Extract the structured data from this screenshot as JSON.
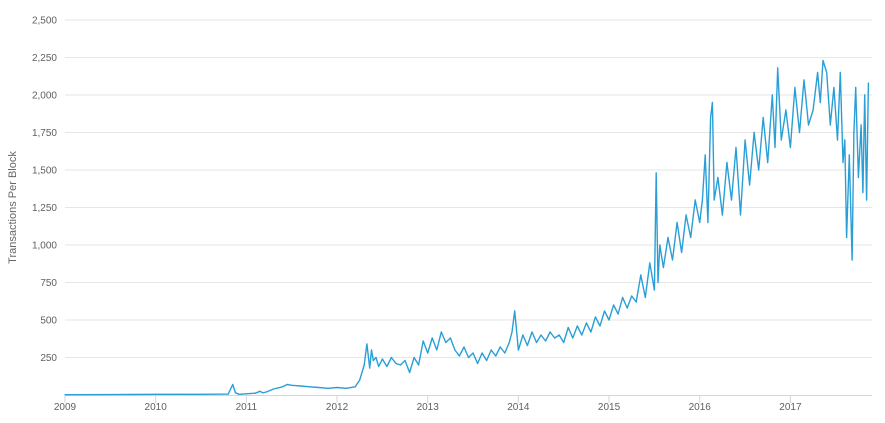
{
  "chart_data": {
    "type": "line",
    "title": "",
    "xlabel": "",
    "ylabel": "Transactions Per Block",
    "xlim": [
      2009.0,
      2017.9
    ],
    "ylim": [
      0,
      2500
    ],
    "x_ticks": [
      {
        "value": 2009,
        "label": "2009"
      },
      {
        "value": 2010,
        "label": "2010"
      },
      {
        "value": 2011,
        "label": "2011"
      },
      {
        "value": 2012,
        "label": "2012"
      },
      {
        "value": 2013,
        "label": "2013"
      },
      {
        "value": 2014,
        "label": "2014"
      },
      {
        "value": 2015,
        "label": "2015"
      },
      {
        "value": 2016,
        "label": "2016"
      },
      {
        "value": 2017,
        "label": "2017"
      }
    ],
    "y_ticks": [
      {
        "value": 250,
        "label": "250"
      },
      {
        "value": 500,
        "label": "500"
      },
      {
        "value": 750,
        "label": "750"
      },
      {
        "value": 1000,
        "label": "1,000"
      },
      {
        "value": 1250,
        "label": "1,250"
      },
      {
        "value": 1500,
        "label": "1,500"
      },
      {
        "value": 1750,
        "label": "1,750"
      },
      {
        "value": 2000,
        "label": "2,000"
      },
      {
        "value": 2250,
        "label": "2,250"
      },
      {
        "value": 2500,
        "label": "2,500"
      }
    ],
    "grid": true,
    "legend": "none",
    "line_color": "#2a9fd6",
    "series": [
      {
        "x": [
          2009.0,
          2009.5,
          2010.0,
          2010.3,
          2010.5,
          2010.8,
          2010.85,
          2010.88,
          2010.92,
          2011.0,
          2011.1,
          2011.15,
          2011.18,
          2011.22,
          2011.3,
          2011.4,
          2011.45,
          2011.5,
          2011.6,
          2011.7,
          2011.8,
          2011.9,
          2012.0,
          2012.1,
          2012.2,
          2012.25,
          2012.3,
          2012.33,
          2012.36,
          2012.38,
          2012.4,
          2012.43,
          2012.46,
          2012.5,
          2012.55,
          2012.6,
          2012.65,
          2012.7,
          2012.75,
          2012.8,
          2012.85,
          2012.9,
          2012.95,
          2013.0,
          2013.05,
          2013.1,
          2013.15,
          2013.2,
          2013.25,
          2013.3,
          2013.35,
          2013.4,
          2013.45,
          2013.5,
          2013.55,
          2013.6,
          2013.65,
          2013.7,
          2013.75,
          2013.8,
          2013.85,
          2013.9,
          2013.93,
          2013.96,
          2014.0,
          2014.05,
          2014.1,
          2014.15,
          2014.2,
          2014.25,
          2014.3,
          2014.35,
          2014.4,
          2014.45,
          2014.5,
          2014.55,
          2014.6,
          2014.65,
          2014.7,
          2014.75,
          2014.8,
          2014.85,
          2014.9,
          2014.95,
          2015.0,
          2015.05,
          2015.1,
          2015.15,
          2015.2,
          2015.25,
          2015.3,
          2015.35,
          2015.4,
          2015.45,
          2015.5,
          2015.52,
          2015.54,
          2015.56,
          2015.6,
          2015.65,
          2015.7,
          2015.75,
          2015.8,
          2015.85,
          2015.9,
          2015.95,
          2016.0,
          2016.03,
          2016.06,
          2016.09,
          2016.12,
          2016.14,
          2016.16,
          2016.2,
          2016.25,
          2016.3,
          2016.35,
          2016.4,
          2016.45,
          2016.5,
          2016.55,
          2016.6,
          2016.65,
          2016.7,
          2016.75,
          2016.8,
          2016.83,
          2016.86,
          2016.9,
          2016.95,
          2017.0,
          2017.05,
          2017.1,
          2017.15,
          2017.2,
          2017.25,
          2017.3,
          2017.33,
          2017.36,
          2017.4,
          2017.44,
          2017.48,
          2017.52,
          2017.55,
          2017.58,
          2017.6,
          2017.62,
          2017.65,
          2017.68,
          2017.7,
          2017.72,
          2017.75,
          2017.78,
          2017.8,
          2017.82,
          2017.84,
          2017.86
        ],
        "values": [
          2,
          3,
          5,
          5,
          5,
          6,
          70,
          15,
          5,
          8,
          12,
          25,
          15,
          20,
          40,
          55,
          70,
          65,
          60,
          55,
          50,
          45,
          50,
          45,
          55,
          100,
          200,
          340,
          180,
          300,
          230,
          250,
          190,
          240,
          190,
          250,
          210,
          200,
          230,
          150,
          250,
          200,
          360,
          280,
          380,
          300,
          420,
          350,
          380,
          300,
          260,
          320,
          250,
          280,
          210,
          280,
          230,
          300,
          260,
          320,
          280,
          350,
          420,
          560,
          300,
          400,
          330,
          420,
          350,
          400,
          360,
          420,
          380,
          400,
          350,
          450,
          380,
          460,
          400,
          480,
          420,
          520,
          460,
          560,
          500,
          600,
          540,
          650,
          580,
          660,
          620,
          800,
          650,
          880,
          700,
          1480,
          750,
          1000,
          850,
          1050,
          900,
          1150,
          950,
          1200,
          1050,
          1300,
          1150,
          1300,
          1600,
          1150,
          1850,
          1950,
          1300,
          1450,
          1200,
          1550,
          1300,
          1650,
          1200,
          1700,
          1400,
          1750,
          1500,
          1850,
          1550,
          2000,
          1650,
          2180,
          1700,
          1900,
          1650,
          2050,
          1750,
          2100,
          1800,
          1900,
          2150,
          1950,
          2230,
          2150,
          1800,
          2050,
          1700,
          2150,
          1550,
          1700,
          1050,
          1600,
          900,
          1750,
          2050,
          1450,
          1800,
          1350,
          2000,
          1300,
          2080
        ]
      }
    ]
  }
}
